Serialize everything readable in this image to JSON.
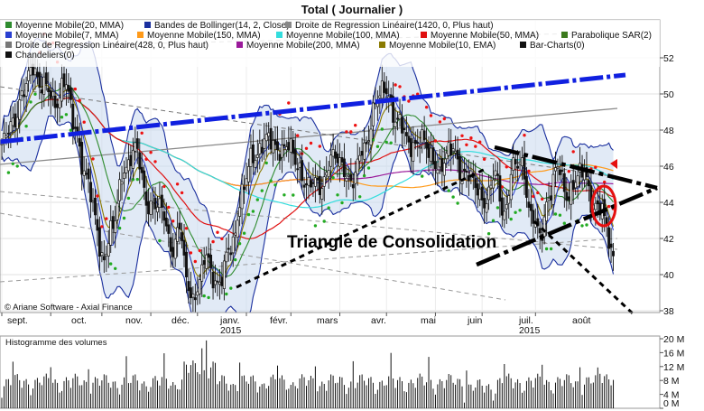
{
  "chart_data": {
    "type": "candlestick",
    "title": "Total  ( Journalier )",
    "legend": [
      {
        "label": "Moyenne Mobile(20, MMA)",
        "color": "#2e8b2e"
      },
      {
        "label": "Bandes de Bollinger(14, 2, Close)",
        "color": "#1a2f9e"
      },
      {
        "label": "Droite de Regression Linéaire(1420, 0, Plus haut)",
        "color": "#888888"
      },
      {
        "label": "Moyenne Mobile(7, MMA)",
        "color": "#2a3fd0"
      },
      {
        "label": "Moyenne Mobile(150, MMA)",
        "color": "#ff9a1a"
      },
      {
        "label": "Moyenne Mobile(100, MMA)",
        "color": "#33dddd"
      },
      {
        "label": "Moyenne Mobile(50, MMA)",
        "color": "#e01010"
      },
      {
        "label": "Parabolique SAR(2)",
        "color": "#3c7a1e"
      },
      {
        "label": "Droite de Regression Linéaire(428, 0, Plus haut)",
        "color": "#777777"
      },
      {
        "label": "Moyenne Mobile(200, MMA)",
        "color": "#9a1a9a"
      },
      {
        "label": "Moyenne Mobile(10, EMA)",
        "color": "#8a7a00"
      },
      {
        "label": "Bar-Charts(0)",
        "color": "#111111"
      },
      {
        "label": "Chandeliers(0)",
        "color": "#111111"
      }
    ],
    "copyright": "© Ariane Software - Axial Finance",
    "annotation": "Triangle de Consolidation",
    "y_ticks": [
      38,
      40,
      42,
      44,
      46,
      48,
      50,
      52
    ],
    "ylim": [
      38,
      53
    ],
    "x_months": [
      "sept.",
      "oct.",
      "nov.",
      "déc.",
      "janv.",
      "févr.",
      "mars",
      "avr.",
      "mai",
      "juin",
      "juil.",
      "août"
    ],
    "x_years": [
      "2015",
      "2015"
    ],
    "volume_title": "Histogramme des volumes",
    "volume_ticks": [
      "20 M",
      "16 M",
      "12 M",
      "8 M",
      "4 M",
      "0 M"
    ],
    "volume_ylim": [
      0,
      20
    ],
    "price_anchors": [
      {
        "day": 0,
        "price": 47.0
      },
      {
        "day": 5,
        "price": 48.6
      },
      {
        "day": 10,
        "price": 50.0
      },
      {
        "day": 14,
        "price": 51.6
      },
      {
        "day": 18,
        "price": 50.5
      },
      {
        "day": 24,
        "price": 49.5
      },
      {
        "day": 28,
        "price": 50.8
      },
      {
        "day": 33,
        "price": 48.0
      },
      {
        "day": 38,
        "price": 45.5
      },
      {
        "day": 42,
        "price": 43.0
      },
      {
        "day": 45,
        "price": 41.0
      },
      {
        "day": 50,
        "price": 42.5
      },
      {
        "day": 55,
        "price": 46.0
      },
      {
        "day": 60,
        "price": 46.8
      },
      {
        "day": 66,
        "price": 44.0
      },
      {
        "day": 72,
        "price": 43.5
      },
      {
        "day": 77,
        "price": 41.5
      },
      {
        "day": 80,
        "price": 42.5
      },
      {
        "day": 83,
        "price": 39.8
      },
      {
        "day": 86,
        "price": 38.8
      },
      {
        "day": 89,
        "price": 39.5
      },
      {
        "day": 92,
        "price": 41.0
      },
      {
        "day": 95,
        "price": 40.0
      },
      {
        "day": 98,
        "price": 39.5
      },
      {
        "day": 103,
        "price": 41.5
      },
      {
        "day": 108,
        "price": 44.5
      },
      {
        "day": 113,
        "price": 46.5
      },
      {
        "day": 118,
        "price": 47.5
      },
      {
        "day": 123,
        "price": 47.0
      },
      {
        "day": 128,
        "price": 47.2
      },
      {
        "day": 133,
        "price": 46.0
      },
      {
        "day": 138,
        "price": 45.0
      },
      {
        "day": 143,
        "price": 44.8
      },
      {
        "day": 148,
        "price": 46.5
      },
      {
        "day": 153,
        "price": 46.0
      },
      {
        "day": 158,
        "price": 45.2
      },
      {
        "day": 163,
        "price": 47.0
      },
      {
        "day": 168,
        "price": 49.5
      },
      {
        "day": 173,
        "price": 50.2
      },
      {
        "day": 178,
        "price": 48.5
      },
      {
        "day": 183,
        "price": 47.2
      },
      {
        "day": 188,
        "price": 47.5
      },
      {
        "day": 193,
        "price": 46.5
      },
      {
        "day": 198,
        "price": 46.0
      },
      {
        "day": 203,
        "price": 47.0
      },
      {
        "day": 208,
        "price": 45.5
      },
      {
        "day": 213,
        "price": 45.0
      },
      {
        "day": 218,
        "price": 44.0
      },
      {
        "day": 222,
        "price": 45.5
      },
      {
        "day": 226,
        "price": 43.5
      },
      {
        "day": 230,
        "price": 45.8
      },
      {
        "day": 234,
        "price": 46.3
      },
      {
        "day": 238,
        "price": 43.2
      },
      {
        "day": 242,
        "price": 42.0
      },
      {
        "day": 246,
        "price": 44.5
      },
      {
        "day": 250,
        "price": 45.8
      },
      {
        "day": 254,
        "price": 44.5
      },
      {
        "day": 258,
        "price": 45.2
      },
      {
        "day": 262,
        "price": 45.6
      },
      {
        "day": 266,
        "price": 44.0
      },
      {
        "day": 269,
        "price": 43.6
      },
      {
        "day": 272,
        "price": 42.6
      },
      {
        "day": 274,
        "price": 41.3
      }
    ]
  }
}
